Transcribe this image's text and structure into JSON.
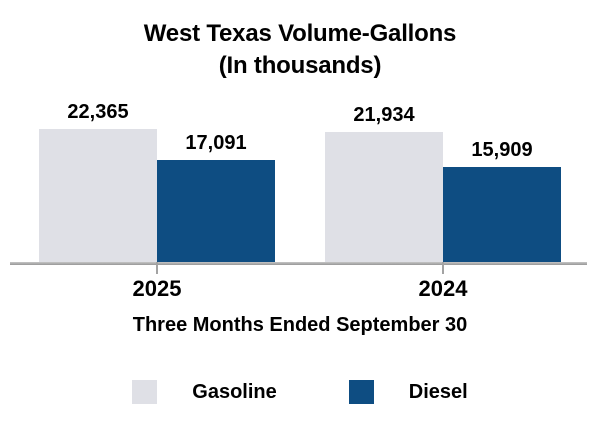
{
  "chart_data": {
    "type": "bar",
    "title": "West Texas Volume-Gallons",
    "subtitle": "(In thousands)",
    "categories": [
      "2025",
      "2024"
    ],
    "series": [
      {
        "name": "Gasoline",
        "color": "#dfe0e6",
        "values": [
          22365,
          21934
        ],
        "value_labels": [
          "22,365",
          "21,934"
        ]
      },
      {
        "name": "Diesel",
        "color": "#0e4d82",
        "values": [
          17091,
          15909
        ],
        "value_labels": [
          "17,091",
          "15,909"
        ]
      }
    ],
    "xlabel": "Three Months Ended September 30",
    "ylim": [
      0,
      22365
    ],
    "grid": false,
    "y_axis_shown": false,
    "value_labels_shown": true,
    "legend_position": "bottom",
    "axis_line_color": "#a3a3a3",
    "text_color": "#000000",
    "background_color": "#ffffff"
  }
}
